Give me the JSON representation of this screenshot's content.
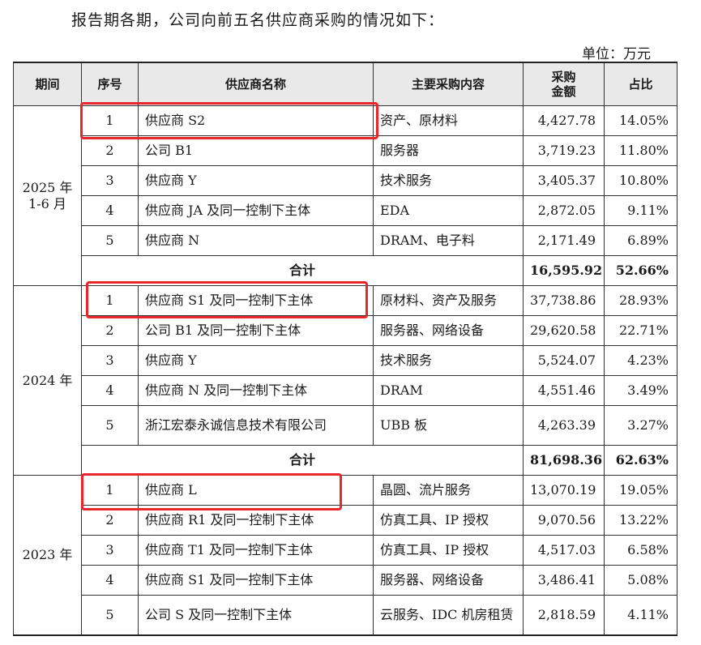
{
  "intro": "报告期各期，公司向前五名供应商采购的情况如下：",
  "unit": "单位：万元",
  "headers": {
    "period": "期间",
    "seq": "序号",
    "supplier": "供应商名称",
    "content": "主要采购内容",
    "amount_l1": "采购",
    "amount_l2": "金额",
    "ratio": "占比"
  },
  "total_label": "合计",
  "sections": [
    {
      "period_l1": "2025 年",
      "period_l2": "1-6 月",
      "rows": [
        {
          "seq": "1",
          "name": "供应商 S2",
          "content": "资产、原材料",
          "amount": "4,427.78",
          "ratio": "14.05%"
        },
        {
          "seq": "2",
          "name": "公司 B1",
          "content": "服务器",
          "amount": "3,719.23",
          "ratio": "11.80%"
        },
        {
          "seq": "3",
          "name": "供应商 Y",
          "content": "技术服务",
          "amount": "3,405.37",
          "ratio": "10.80%"
        },
        {
          "seq": "4",
          "name": "供应商 JA 及同一控制下主体",
          "content": "EDA",
          "amount": "2,872.05",
          "ratio": "9.11%"
        },
        {
          "seq": "5",
          "name": "供应商 N",
          "content": "DRAM、电子料",
          "amount": "2,171.49",
          "ratio": "6.89%"
        }
      ],
      "total_amount": "16,595.92",
      "total_ratio": "52.66%"
    },
    {
      "period_l1": "2024 年",
      "period_l2": "",
      "rows": [
        {
          "seq": "1",
          "name": "供应商 S1 及同一控制下主体",
          "content": "原材料、资产及服务",
          "amount": "37,738.86",
          "ratio": "28.93%"
        },
        {
          "seq": "2",
          "name": "公司 B1 及同一控制下主体",
          "content": "服务器、网络设备",
          "amount": "29,620.58",
          "ratio": "22.71%"
        },
        {
          "seq": "3",
          "name": "供应商 Y",
          "content": "技术服务",
          "amount": "5,524.07",
          "ratio": "4.23%"
        },
        {
          "seq": "4",
          "name": "供应商 N 及同一控制下主体",
          "content": "DRAM",
          "amount": "4,551.46",
          "ratio": "3.49%"
        },
        {
          "seq": "5",
          "name": "浙江宏泰永诚信息技术有限公司",
          "content": "UBB 板",
          "amount": "4,263.39",
          "ratio": "3.27%"
        }
      ],
      "total_amount": "81,698.36",
      "total_ratio": "62.63%"
    },
    {
      "period_l1": "2023 年",
      "period_l2": "",
      "rows": [
        {
          "seq": "1",
          "name": "供应商 L",
          "content": "晶圆、流片服务",
          "amount": "13,070.19",
          "ratio": "19.05%"
        },
        {
          "seq": "2",
          "name": "供应商 R1 及同一控制下主体",
          "content": "仿真工具、IP 授权",
          "amount": "9,070.56",
          "ratio": "13.22%"
        },
        {
          "seq": "3",
          "name": "供应商 T1 及同一控制下主体",
          "content": "仿真工具、IP 授权",
          "amount": "4,517.03",
          "ratio": "6.58%"
        },
        {
          "seq": "4",
          "name": "供应商 S1 及同一控制下主体",
          "content": "服务器、网络设备",
          "amount": "3,486.41",
          "ratio": "5.08%"
        },
        {
          "seq": "5",
          "name": "公司 S 及同一控制下主体",
          "content": "云服务、IDC 机房租赁",
          "amount": "2,818.59",
          "ratio": "4.11%"
        }
      ]
    }
  ],
  "highlight_color": "#e8262b"
}
